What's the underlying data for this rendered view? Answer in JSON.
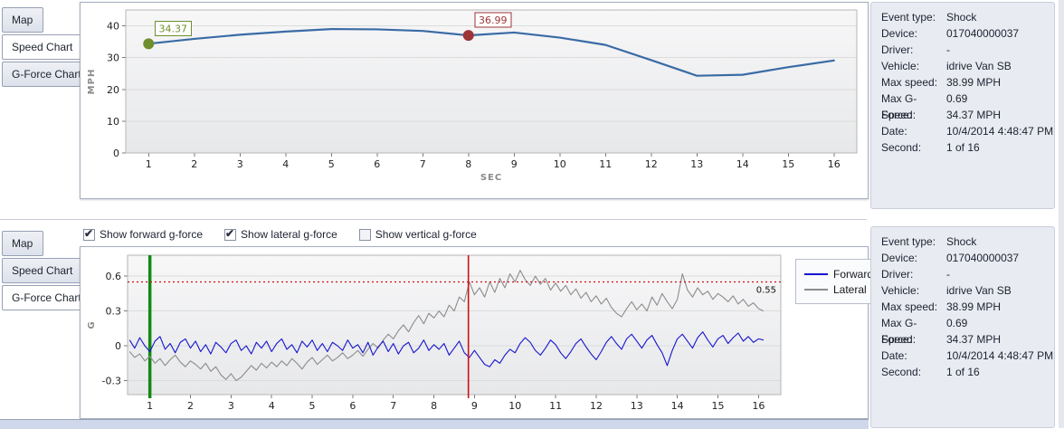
{
  "panels": {
    "top": {
      "tabs": [
        {
          "label": "Map",
          "active": false
        },
        {
          "label": "Speed Chart",
          "active": true
        },
        {
          "label": "G-Force Chart",
          "active": false
        }
      ]
    },
    "bottom": {
      "tabs": [
        {
          "label": "Map",
          "active": false
        },
        {
          "label": "Speed Chart",
          "active": false
        },
        {
          "label": "G-Force Chart",
          "active": true
        }
      ],
      "checkboxes": [
        {
          "label": "Show forward g-force",
          "checked": true
        },
        {
          "label": "Show lateral g-force",
          "checked": true
        },
        {
          "label": "Show vertical g-force",
          "checked": false
        }
      ]
    }
  },
  "event_info": {
    "rows": [
      {
        "label": "Event type:",
        "value": "Shock"
      },
      {
        "label": "Device:",
        "value": "017040000037"
      },
      {
        "label": "Driver:",
        "value": "-"
      },
      {
        "label": "Vehicle:",
        "value": "idrive Van SB"
      },
      {
        "label": "Max speed:",
        "value": "38.99 MPH"
      },
      {
        "label": "Max G-Force:",
        "value": "0.69"
      },
      {
        "label": "Speed:",
        "value": "34.37 MPH"
      },
      {
        "label": "Date:",
        "value": "10/4/2014 4:48:47 PM"
      },
      {
        "label": "Second:",
        "value": "1 of 16"
      }
    ]
  },
  "chart_data": [
    {
      "type": "line",
      "title": "Speed Chart",
      "xlabel": "SEC",
      "ylabel": "MPH",
      "xlim": [
        0.5,
        16.5
      ],
      "ylim": [
        0,
        45
      ],
      "xticks": [
        1,
        2,
        3,
        4,
        5,
        6,
        7,
        8,
        9,
        10,
        11,
        12,
        13,
        14,
        15,
        16
      ],
      "yticks": [
        0,
        10,
        20,
        30,
        40
      ],
      "grid": "horizontal",
      "line_color": "#3a6ba5",
      "x": [
        1,
        2,
        3,
        4,
        5,
        6,
        7,
        8,
        9,
        10,
        11,
        12,
        13,
        14,
        15,
        16
      ],
      "values": [
        34.37,
        35.9,
        37.2,
        38.2,
        38.99,
        38.9,
        38.4,
        36.99,
        37.9,
        36.3,
        34.0,
        29.2,
        24.3,
        24.6,
        27.0,
        29.1
      ],
      "markers": [
        {
          "x": 1,
          "y": 34.37,
          "label": "34.37",
          "color": "#6f8f2f"
        },
        {
          "x": 8,
          "y": 36.99,
          "label": "36.99",
          "color": "#9e3436"
        }
      ]
    },
    {
      "type": "line",
      "title": "G-Force Chart",
      "xlabel": "SEC",
      "ylabel": "G",
      "xlim": [
        0.45,
        16.55
      ],
      "ylim": [
        -0.42,
        0.78
      ],
      "xticks": [
        1,
        2,
        3,
        4,
        5,
        6,
        7,
        8,
        9,
        10,
        11,
        12,
        13,
        14,
        15,
        16
      ],
      "yticks": [
        -0.3,
        0,
        0.3,
        0.6
      ],
      "grid": "horizontal",
      "legend_position": "right",
      "threshold": {
        "value": 0.55,
        "label": "0.55",
        "color": "#cc1111"
      },
      "vlines": [
        {
          "x": 1,
          "color": "#128a12",
          "width": 3.5
        },
        {
          "x": 8.85,
          "color": "#cc1111",
          "width": 1.6
        }
      ],
      "x_start": 0.5,
      "x_step": 0.125,
      "series": [
        {
          "name": "Forward",
          "color": "#1515cd",
          "values": [
            0.05,
            -0.02,
            0.07,
            0,
            -0.05,
            0.04,
            0.08,
            -0.03,
            0.02,
            -0.06,
            0.03,
            0.06,
            -0.02,
            0.04,
            -0.05,
            0.01,
            -0.07,
            0.03,
            -0.01,
            -0.06,
            0.02,
            0.05,
            -0.04,
            0,
            -0.07,
            0.03,
            -0.02,
            0.04,
            -0.05,
            0.02,
            0.06,
            -0.03,
            0.01,
            -0.06,
            0.04,
            -0.01,
            0.05,
            -0.04,
            0.02,
            -0.05,
            0.03,
            0,
            -0.04,
            0.05,
            -0.02,
            0.01,
            -0.06,
            0.03,
            -0.08,
            -0.01,
            0.04,
            -0.05,
            0.02,
            -0.07,
            0,
            0.03,
            -0.06,
            -0.02,
            0.05,
            -0.04,
            0.01,
            -0.03,
            0.02,
            -0.08,
            -0.02,
            0.04,
            -0.06,
            -0.1,
            -0.04,
            -0.1,
            -0.16,
            -0.18,
            -0.12,
            -0.15,
            -0.08,
            -0.03,
            -0.06,
            0.02,
            0.07,
            0.03,
            -0.04,
            -0.08,
            -0.02,
            0.05,
            0.01,
            -0.06,
            -0.11,
            -0.05,
            0.02,
            0.06,
            -0.01,
            -0.07,
            -0.12,
            -0.05,
            0.03,
            0.08,
            0.02,
            -0.03,
            0.06,
            0.1,
            0.04,
            -0.02,
            0.05,
            0.09,
            0.01,
            -0.06,
            -0.17,
            -0.04,
            0.06,
            0.1,
            0.04,
            -0.02,
            0.07,
            0.12,
            0.05,
            -0.01,
            0.06,
            0.09,
            0.02,
            0.07,
            0.11,
            0.04,
            0.08,
            0.03,
            0.06,
            0.05
          ]
        },
        {
          "name": "Lateral",
          "color": "#8c8c8c",
          "values": [
            -0.05,
            -0.1,
            -0.07,
            -0.13,
            -0.09,
            -0.15,
            -0.11,
            -0.17,
            -0.12,
            -0.08,
            -0.14,
            -0.18,
            -0.13,
            -0.16,
            -0.2,
            -0.15,
            -0.22,
            -0.18,
            -0.25,
            -0.29,
            -0.24,
            -0.3,
            -0.27,
            -0.22,
            -0.17,
            -0.21,
            -0.15,
            -0.19,
            -0.14,
            -0.18,
            -0.13,
            -0.17,
            -0.11,
            -0.15,
            -0.2,
            -0.14,
            -0.1,
            -0.16,
            -0.12,
            -0.08,
            -0.13,
            -0.1,
            -0.06,
            -0.11,
            -0.08,
            -0.04,
            -0.09,
            -0.03,
            0.02,
            -0.02,
            0.05,
            0.1,
            0.06,
            0.13,
            0.18,
            0.12,
            0.2,
            0.26,
            0.19,
            0.28,
            0.24,
            0.3,
            0.25,
            0.35,
            0.3,
            0.42,
            0.38,
            0.55,
            0.44,
            0.5,
            0.42,
            0.55,
            0.46,
            0.58,
            0.5,
            0.62,
            0.55,
            0.65,
            0.57,
            0.52,
            0.6,
            0.53,
            0.58,
            0.48,
            0.54,
            0.47,
            0.52,
            0.44,
            0.49,
            0.41,
            0.46,
            0.38,
            0.43,
            0.36,
            0.41,
            0.33,
            0.28,
            0.25,
            0.32,
            0.38,
            0.31,
            0.36,
            0.3,
            0.42,
            0.35,
            0.45,
            0.38,
            0.32,
            0.4,
            0.62,
            0.48,
            0.42,
            0.5,
            0.44,
            0.47,
            0.4,
            0.45,
            0.42,
            0.38,
            0.43,
            0.36,
            0.4,
            0.34,
            0.37,
            0.32,
            0.3
          ]
        }
      ]
    }
  ]
}
